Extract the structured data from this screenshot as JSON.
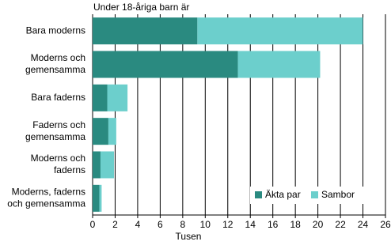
{
  "chart_data": {
    "type": "hbar-stacked",
    "title": "Under 18-åriga barn är",
    "x_label": "Tusen",
    "categories": [
      [
        "Bara moderns"
      ],
      [
        "Moderns och",
        "gemensamma"
      ],
      [
        "Bara faderns"
      ],
      [
        "Faderns och",
        "gemensamma"
      ],
      [
        "Moderns och",
        "faderns"
      ],
      [
        "Moderns, faderns",
        "och gemensamma"
      ]
    ],
    "series": [
      {
        "name": "Äkta par",
        "color": "#2a8a80",
        "values": [
          9.3,
          12.9,
          1.3,
          1.4,
          0.7,
          0.6
        ]
      },
      {
        "name": "Sambor",
        "color": "#6ccfcc",
        "values": [
          14.7,
          7.3,
          1.8,
          0.7,
          1.2,
          0.2
        ]
      }
    ],
    "xlim": [
      0,
      26
    ],
    "xticks": [
      0,
      2,
      4,
      6,
      8,
      10,
      12,
      14,
      16,
      18,
      20,
      22,
      24,
      26
    ],
    "grid": true,
    "legend": "lower-right"
  }
}
